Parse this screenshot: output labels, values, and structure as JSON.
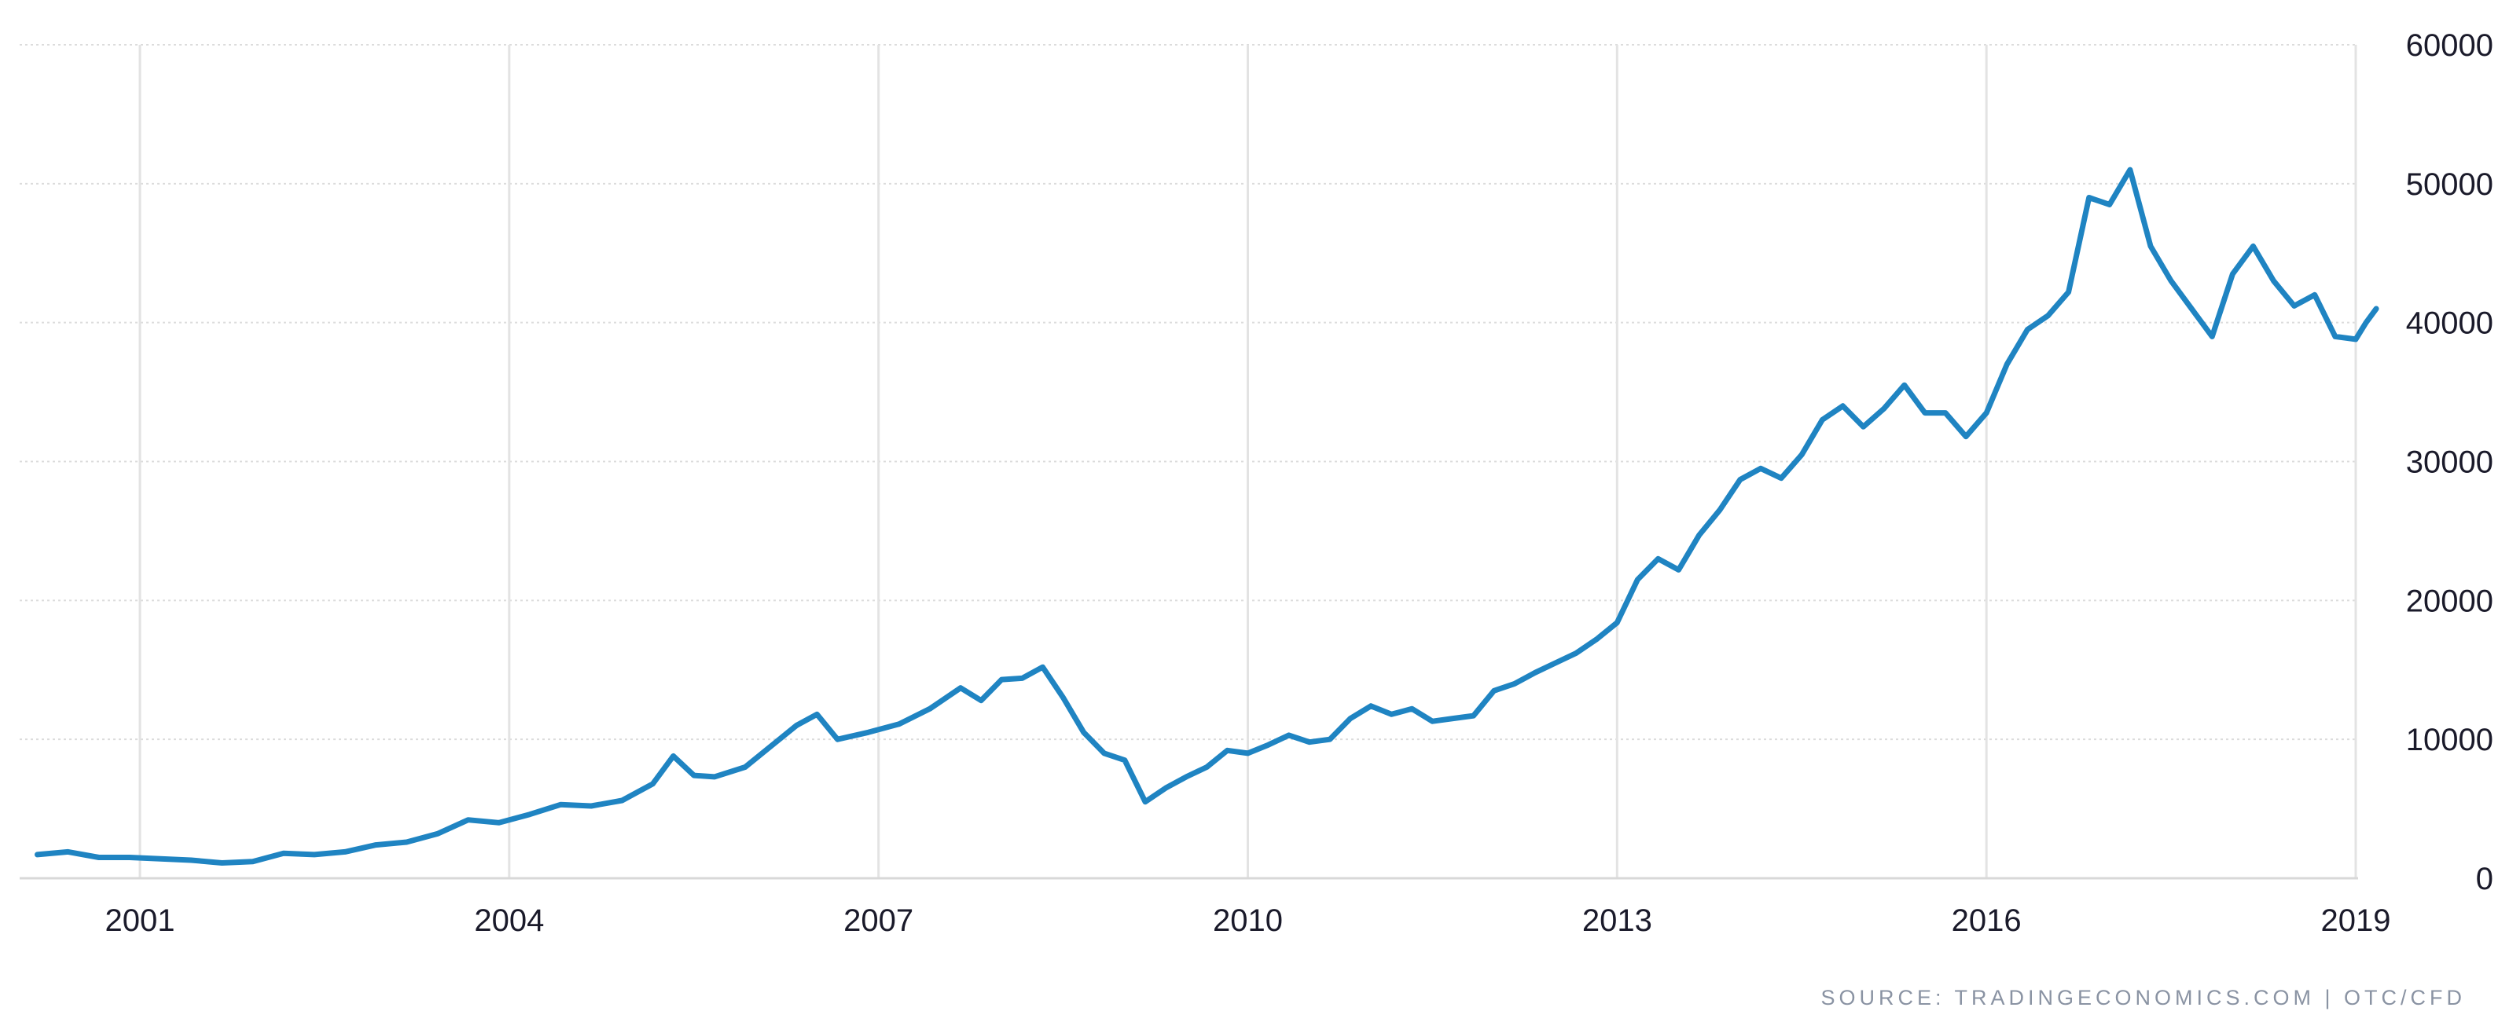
{
  "chart_data": {
    "type": "line",
    "title": "",
    "xlabel": "",
    "ylabel": "",
    "ylim": [
      0,
      60000
    ],
    "xlim": [
      "2000-03",
      "2019-03"
    ],
    "y_axis_side": "right",
    "grid": true,
    "x_tick_labels": [
      "2001",
      "2004",
      "2007",
      "2010",
      "2013",
      "2016",
      "2019"
    ],
    "y_tick_labels": [
      "0",
      "10000",
      "20000",
      "30000",
      "40000",
      "50000",
      "60000"
    ],
    "series": [
      {
        "color": "#1f84c2",
        "x": [
          "2000-03",
          "2000-06",
          "2000-09",
          "2000-12",
          "2001-03",
          "2001-06",
          "2001-09",
          "2001-12",
          "2002-03",
          "2002-06",
          "2002-09",
          "2002-12",
          "2003-03",
          "2003-06",
          "2003-09",
          "2003-12",
          "2004-03",
          "2004-06",
          "2004-09",
          "2004-12",
          "2005-03",
          "2005-05",
          "2005-07",
          "2005-09",
          "2005-12",
          "2006-03",
          "2006-05",
          "2006-07",
          "2006-09",
          "2006-12",
          "2007-03",
          "2007-06",
          "2007-09",
          "2007-11",
          "2008-01",
          "2008-03",
          "2008-05",
          "2008-07",
          "2008-09",
          "2008-11",
          "2009-01",
          "2009-03",
          "2009-05",
          "2009-07",
          "2009-09",
          "2009-11",
          "2010-01",
          "2010-03",
          "2010-05",
          "2010-07",
          "2010-09",
          "2010-11",
          "2011-01",
          "2011-03",
          "2011-05",
          "2011-07",
          "2011-09",
          "2011-11",
          "2012-01",
          "2012-03",
          "2012-05",
          "2012-07",
          "2012-09",
          "2012-11",
          "2013-01",
          "2013-03",
          "2013-05",
          "2013-07",
          "2013-09",
          "2013-11",
          "2014-01",
          "2014-03",
          "2014-05",
          "2014-07",
          "2014-09",
          "2014-11",
          "2015-01",
          "2015-03",
          "2015-05",
          "2015-07",
          "2015-09",
          "2015-11",
          "2016-01",
          "2016-03",
          "2016-05",
          "2016-07",
          "2016-09",
          "2016-11",
          "2017-01",
          "2017-03",
          "2017-05",
          "2017-07",
          "2017-09",
          "2017-11",
          "2018-01",
          "2018-03",
          "2018-05",
          "2018-07",
          "2018-09",
          "2018-11",
          "2019-01",
          "2019-02",
          "2019-03"
        ],
        "y": [
          1700,
          1900,
          1500,
          1500,
          1400,
          1300,
          1100,
          1200,
          1800,
          1700,
          1900,
          2400,
          2600,
          3200,
          4200,
          4000,
          4600,
          5300,
          5200,
          5600,
          6800,
          8800,
          7400,
          7300,
          8000,
          9800,
          11000,
          11800,
          10000,
          10500,
          11100,
          12200,
          13700,
          12800,
          14300,
          14400,
          15200,
          13000,
          10500,
          9000,
          8500,
          5500,
          6500,
          7300,
          8000,
          9200,
          9000,
          9600,
          10300,
          9800,
          10000,
          11500,
          12400,
          11800,
          12200,
          11300,
          11500,
          11700,
          13500,
          14000,
          14800,
          15500,
          16200,
          17200,
          18400,
          21500,
          23000,
          22200,
          24700,
          26500,
          28700,
          29500,
          28800,
          30500,
          33000,
          34000,
          32500,
          33800,
          35500,
          33500,
          33500,
          31800,
          33500,
          37000,
          39500,
          40500,
          42200,
          49000,
          48500,
          51000,
          45500,
          43000,
          41000,
          39000,
          43500,
          45500,
          43000,
          41200,
          42000,
          39000,
          38800,
          40000,
          41000
        ]
      }
    ]
  },
  "source_text": "SOURCE: TRADINGECONOMICS.COM  |  OTC/CFD"
}
